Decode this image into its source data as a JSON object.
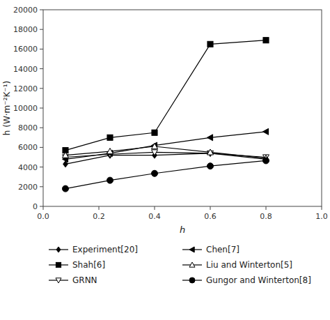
{
  "chart_data": {
    "type": "line",
    "x": [
      0.08,
      0.24,
      0.4,
      0.6,
      0.8
    ],
    "xlabel": "h",
    "ylabel": "h (W·m⁻²K⁻¹)",
    "xlim": [
      0.0,
      1.0
    ],
    "ylim": [
      0,
      20000
    ],
    "xticks": [
      {
        "value": 0.0,
        "label": "0.0"
      },
      0.2,
      0.4,
      0.6,
      0.8,
      {
        "value": 1.0,
        "label": "1.0"
      }
    ],
    "yticks": [
      0,
      2000,
      4000,
      6000,
      8000,
      10000,
      12000,
      14000,
      16000,
      18000,
      20000
    ],
    "grid": false,
    "legend": "bottom",
    "series": [
      {
        "name": "Experiment[20]",
        "color": "black",
        "marker": "diamond",
        "values": [
          4300,
          5200,
          5200,
          5400,
          4800
        ]
      },
      {
        "name": "Shah[6]",
        "color": "black",
        "marker": "square",
        "values": [
          5700,
          7000,
          7500,
          16500,
          16900
        ]
      },
      {
        "name": "GRNN",
        "color": "black",
        "marker": "triangle-down-open",
        "values": [
          5000,
          5300,
          5500,
          5400,
          5000
        ]
      },
      {
        "name": "Chen[7]",
        "color": "black",
        "marker": "triangle-left",
        "values": [
          4800,
          5400,
          6200,
          7000,
          7600
        ]
      },
      {
        "name": "Liu and Winterton[5]",
        "color": "black",
        "marker": "triangle-up-open",
        "values": [
          5200,
          5600,
          6100,
          5500,
          4900
        ]
      },
      {
        "name": "Gungor and Winterton[8]",
        "color": "black",
        "marker": "circle",
        "values": [
          1800,
          2650,
          3350,
          4100,
          4650
        ]
      }
    ]
  }
}
